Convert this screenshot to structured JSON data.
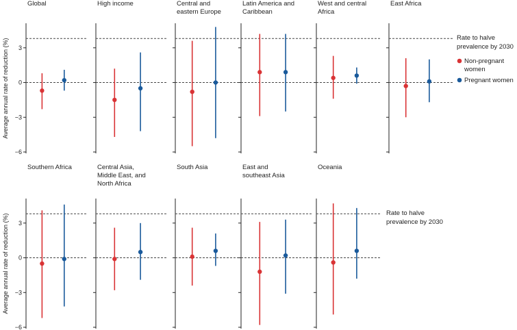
{
  "chart_data": {
    "type": "dot_range_small_multiples",
    "ylabel": "Average annual rate of reduction (%)",
    "ylim": [
      -6,
      5
    ],
    "yticks": [
      -6,
      -3,
      0,
      3
    ],
    "ytick_labels": [
      "−6",
      "−3",
      "0",
      "3"
    ],
    "reference_lines": [
      {
        "name": "zero",
        "value": 0
      },
      {
        "name": "halve-target",
        "value": 3.8
      }
    ],
    "series": [
      {
        "name": "Non-pregnant women",
        "color": "#d93335"
      },
      {
        "name": "Pregnant women",
        "color": "#1a5a9b"
      }
    ],
    "legend": {
      "title_lines": [
        "Rate to halve",
        "prevalence by 2030"
      ],
      "items": [
        {
          "lines": [
            "Non-pregnant",
            "women"
          ],
          "color": "#d93335"
        },
        {
          "lines": [
            "Pregnant women"
          ],
          "color": "#1a5a9b"
        }
      ]
    },
    "annotation": {
      "lines": [
        "Rate to halve",
        "prevalence by 2030"
      ]
    },
    "panels": [
      {
        "title_lines": [
          "Global"
        ],
        "non_pregnant": {
          "value": -0.7,
          "low": -2.3,
          "high": 0.8
        },
        "pregnant": {
          "value": 0.2,
          "low": -0.7,
          "high": 1.1
        }
      },
      {
        "title_lines": [
          "High income"
        ],
        "non_pregnant": {
          "value": -1.5,
          "low": -4.7,
          "high": 1.2
        },
        "pregnant": {
          "value": -0.5,
          "low": -4.2,
          "high": 2.6
        }
      },
      {
        "title_lines": [
          "Central and",
          "eastern Europe"
        ],
        "non_pregnant": {
          "value": -0.8,
          "low": -5.5,
          "high": 3.6
        },
        "pregnant": {
          "value": 0.0,
          "low": -4.8,
          "high": 4.8
        }
      },
      {
        "title_lines": [
          "Latin America and",
          "Caribbean"
        ],
        "non_pregnant": {
          "value": 0.9,
          "low": -2.9,
          "high": 4.2
        },
        "pregnant": {
          "value": 0.9,
          "low": -2.5,
          "high": 4.2
        }
      },
      {
        "title_lines": [
          "West and central",
          "Africa"
        ],
        "non_pregnant": {
          "value": 0.4,
          "low": -1.4,
          "high": 2.3
        },
        "pregnant": {
          "value": 0.6,
          "low": -0.1,
          "high": 1.3
        }
      },
      {
        "title_lines": [
          "East Africa"
        ],
        "non_pregnant": {
          "value": -0.3,
          "low": -3.0,
          "high": 2.1
        },
        "pregnant": {
          "value": 0.1,
          "low": -1.7,
          "high": 2.0
        }
      },
      {
        "title_lines": [
          "Southern Africa"
        ],
        "non_pregnant": {
          "value": -0.5,
          "low": -5.2,
          "high": 4.1
        },
        "pregnant": {
          "value": -0.1,
          "low": -4.2,
          "high": 4.6
        }
      },
      {
        "title_lines": [
          "Central Asia,",
          "Middle East, and",
          "North Africa"
        ],
        "non_pregnant": {
          "value": -0.1,
          "low": -2.8,
          "high": 2.6
        },
        "pregnant": {
          "value": 0.5,
          "low": -1.9,
          "high": 3.0
        }
      },
      {
        "title_lines": [
          "South Asia"
        ],
        "non_pregnant": {
          "value": 0.1,
          "low": -2.4,
          "high": 2.6
        },
        "pregnant": {
          "value": 0.6,
          "low": -0.7,
          "high": 2.1
        }
      },
      {
        "title_lines": [
          "East and",
          "southeast Asia"
        ],
        "non_pregnant": {
          "value": -1.2,
          "low": -5.8,
          "high": 3.1
        },
        "pregnant": {
          "value": 0.2,
          "low": -3.1,
          "high": 3.3
        }
      },
      {
        "title_lines": [
          "Oceania"
        ],
        "non_pregnant": {
          "value": -0.4,
          "low": -4.9,
          "high": 4.7
        },
        "pregnant": {
          "value": 0.6,
          "low": -1.8,
          "high": 4.3
        }
      }
    ]
  }
}
